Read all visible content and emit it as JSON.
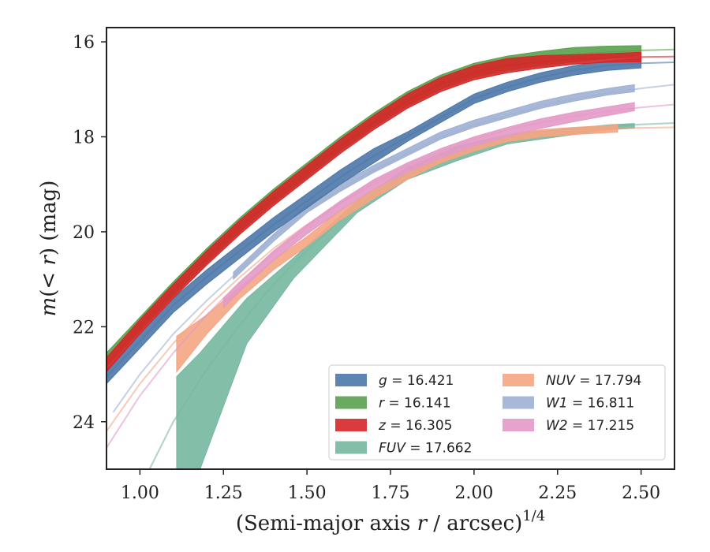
{
  "chart_data": {
    "type": "line",
    "xlabel": "(Semi-major axis r / arcsec)",
    "xlabel_parts": {
      "prefix": "(Semi-major axis ",
      "var": "r",
      "suffix": " / arcsec)",
      "exp": "1/4"
    },
    "ylabel": "m(< r) (mag)",
    "ylabel_parts": {
      "m": "m",
      "paren_open": "(",
      "lt": "< ",
      "r": "r",
      "paren_close": ")",
      "unit": " (mag)"
    },
    "xlim": [
      0.9,
      2.6
    ],
    "ylim": [
      25,
      15.7
    ],
    "y_inverted": true,
    "grid": false,
    "legend_position": "lower-right",
    "x_ticks": [
      1.0,
      1.25,
      1.5,
      1.75,
      2.0,
      2.25,
      2.5
    ],
    "x_tick_labels": [
      "1.00",
      "1.25",
      "1.50",
      "1.75",
      "2.00",
      "2.25",
      "2.50"
    ],
    "y_ticks": [
      16,
      18,
      20,
      22,
      24
    ],
    "y_tick_labels": [
      "16",
      "18",
      "20",
      "22",
      "24"
    ],
    "series": [
      {
        "name": "g",
        "legend_var": "g",
        "legend_value": "= 16.421",
        "color": "#4c78a8",
        "x": [
          0.9,
          1.0,
          1.1,
          1.2,
          1.3,
          1.4,
          1.5,
          1.6,
          1.7,
          1.8,
          1.9,
          2.0,
          2.1,
          2.2,
          2.3,
          2.4,
          2.5,
          2.6
        ],
        "y": [
          23.05,
          22.3,
          21.55,
          20.95,
          20.4,
          19.85,
          19.35,
          18.85,
          18.4,
          18.0,
          17.6,
          17.2,
          16.95,
          16.75,
          16.6,
          16.5,
          16.45,
          16.43
        ],
        "band_x": [
          0.9,
          1.0,
          1.1,
          1.2,
          1.3,
          1.4,
          1.5,
          1.6,
          1.7,
          1.8,
          1.9,
          2.0,
          2.1,
          2.2,
          2.3,
          2.4,
          2.5
        ],
        "band_lower": [
          23.2,
          22.45,
          21.7,
          21.1,
          20.55,
          20.0,
          19.5,
          19.0,
          18.55,
          18.1,
          17.7,
          17.3,
          17.05,
          16.85,
          16.7,
          16.6,
          16.55
        ],
        "band_upper": [
          22.9,
          22.15,
          21.4,
          20.8,
          20.25,
          19.7,
          19.2,
          18.7,
          18.25,
          17.9,
          17.5,
          17.1,
          16.85,
          16.65,
          16.5,
          16.4,
          16.35
        ]
      },
      {
        "name": "r",
        "legend_var": "r",
        "legend_value": "= 16.141",
        "color": "#59a14f",
        "x": [
          0.9,
          1.0,
          1.1,
          1.2,
          1.3,
          1.4,
          1.5,
          1.6,
          1.7,
          1.8,
          1.9,
          2.0,
          2.1,
          2.2,
          2.3,
          2.4,
          2.5,
          2.6
        ],
        "y": [
          22.7,
          21.95,
          21.2,
          20.5,
          19.85,
          19.25,
          18.7,
          18.15,
          17.65,
          17.2,
          16.85,
          16.6,
          16.45,
          16.35,
          16.27,
          16.22,
          16.18,
          16.16
        ],
        "band_x": [
          0.9,
          1.0,
          1.1,
          1.2,
          1.3,
          1.4,
          1.5,
          1.6,
          1.7,
          1.8,
          1.9,
          2.0,
          2.1,
          2.2,
          2.3,
          2.4,
          2.5
        ],
        "band_lower": [
          22.85,
          22.1,
          21.35,
          20.65,
          20.0,
          19.4,
          18.85,
          18.3,
          17.8,
          17.35,
          17.0,
          16.75,
          16.6,
          16.5,
          16.42,
          16.35,
          16.28
        ],
        "band_upper": [
          22.55,
          21.8,
          21.05,
          20.35,
          19.7,
          19.1,
          18.55,
          18.0,
          17.5,
          17.05,
          16.7,
          16.45,
          16.3,
          16.2,
          16.12,
          16.09,
          16.08
        ]
      },
      {
        "name": "z",
        "legend_var": "z",
        "legend_value": "= 16.305",
        "color": "#d62728",
        "x": [
          0.9,
          1.0,
          1.1,
          1.2,
          1.3,
          1.4,
          1.5,
          1.6,
          1.7,
          1.8,
          1.9,
          2.0,
          2.1,
          2.2,
          2.3,
          2.4,
          2.5,
          2.6
        ],
        "y": [
          22.8,
          22.0,
          21.25,
          20.55,
          19.9,
          19.3,
          18.75,
          18.2,
          17.7,
          17.25,
          16.9,
          16.65,
          16.5,
          16.42,
          16.37,
          16.34,
          16.32,
          16.31
        ],
        "band_x": [
          0.9,
          1.0,
          1.1,
          1.2,
          1.3,
          1.4,
          1.5,
          1.6,
          1.7,
          1.8,
          1.9,
          2.0,
          2.1,
          2.2,
          2.3,
          2.4,
          2.5
        ],
        "band_lower": [
          22.95,
          22.15,
          21.4,
          20.7,
          20.05,
          19.45,
          18.9,
          18.35,
          17.85,
          17.4,
          17.05,
          16.8,
          16.65,
          16.55,
          16.47,
          16.43,
          16.42
        ],
        "band_upper": [
          22.65,
          21.85,
          21.1,
          20.4,
          19.75,
          19.15,
          18.6,
          18.05,
          17.55,
          17.1,
          16.75,
          16.5,
          16.35,
          16.29,
          16.27,
          16.25,
          16.22
        ]
      },
      {
        "name": "FUV",
        "legend_var": "FUV",
        "legend_value": "= 17.662",
        "color": "#76b7a0",
        "x": [
          0.9,
          1.0,
          1.1,
          1.2,
          1.3,
          1.4,
          1.5,
          1.6,
          1.7,
          1.8,
          1.9,
          2.0,
          2.1,
          2.2,
          2.3,
          2.4,
          2.5,
          2.6
        ],
        "y": [
          27.0,
          25.4,
          24.0,
          22.9,
          21.95,
          21.1,
          20.4,
          19.75,
          19.2,
          18.75,
          18.45,
          18.2,
          18.0,
          17.9,
          17.83,
          17.78,
          17.74,
          17.71
        ],
        "band_x": [
          1.11,
          1.18,
          1.32,
          1.46,
          1.65,
          1.8,
          1.95,
          2.1,
          2.25,
          2.4,
          2.48
        ],
        "band_lower": [
          25.0,
          25.0,
          22.35,
          20.98,
          19.6,
          18.9,
          18.5,
          18.15,
          18.0,
          17.85,
          17.82
        ],
        "band_upper": [
          23.05,
          22.55,
          21.4,
          20.55,
          19.35,
          18.65,
          18.2,
          17.95,
          17.85,
          17.75,
          17.72
        ]
      },
      {
        "name": "NUV",
        "legend_var": "NUV",
        "legend_value": "= 17.794",
        "color": "#f4a582",
        "x": [
          0.9,
          1.0,
          1.1,
          1.2,
          1.3,
          1.4,
          1.5,
          1.6,
          1.7,
          1.8,
          1.9,
          2.0,
          2.1,
          2.2,
          2.3,
          2.4,
          2.5,
          2.6
        ],
        "y": [
          24.2,
          23.2,
          22.35,
          21.6,
          20.95,
          20.35,
          19.85,
          19.4,
          19.0,
          18.65,
          18.35,
          18.15,
          18.0,
          17.92,
          17.87,
          17.83,
          17.81,
          17.8
        ],
        "band_x": [
          1.11,
          1.2,
          1.3,
          1.4,
          1.5,
          1.6,
          1.7,
          1.8,
          1.9,
          2.0,
          2.1,
          2.2,
          2.3,
          2.43
        ],
        "band_lower": [
          22.95,
          22.15,
          21.4,
          20.8,
          20.3,
          19.75,
          19.3,
          18.9,
          18.55,
          18.3,
          18.1,
          18.0,
          17.95,
          17.9
        ],
        "band_upper": [
          22.2,
          21.75,
          21.15,
          20.6,
          20.1,
          19.55,
          19.1,
          18.7,
          18.4,
          18.15,
          17.95,
          17.85,
          17.8,
          17.75
        ]
      },
      {
        "name": "W1",
        "legend_var": "W1",
        "legend_value": "= 16.811",
        "color": "#9fb0d3",
        "x": [
          0.92,
          1.0,
          1.1,
          1.2,
          1.3,
          1.4,
          1.5,
          1.6,
          1.7,
          1.8,
          1.9,
          2.0,
          2.1,
          2.2,
          2.3,
          2.4,
          2.5,
          2.6
        ],
        "y": [
          23.8,
          23.0,
          22.15,
          21.45,
          20.8,
          20.1,
          19.55,
          19.1,
          18.7,
          18.35,
          18.0,
          17.75,
          17.55,
          17.35,
          17.2,
          17.08,
          16.98,
          16.9
        ],
        "band_x": [
          1.28,
          1.4,
          1.5,
          1.6,
          1.7,
          1.8,
          1.9,
          2.0,
          2.1,
          2.2,
          2.3,
          2.4,
          2.48
        ],
        "band_lower": [
          21.0,
          20.2,
          19.6,
          19.15,
          18.75,
          18.4,
          18.05,
          17.8,
          17.6,
          17.4,
          17.25,
          17.12,
          17.05
        ],
        "band_upper": [
          20.85,
          20.05,
          19.45,
          19.0,
          18.6,
          18.25,
          17.9,
          17.65,
          17.45,
          17.25,
          17.1,
          16.98,
          16.9
        ]
      },
      {
        "name": "W2",
        "legend_var": "W2",
        "legend_value": "= 17.215",
        "color": "#e39ac6",
        "x": [
          0.9,
          1.0,
          1.1,
          1.2,
          1.3,
          1.4,
          1.5,
          1.6,
          1.7,
          1.8,
          1.9,
          2.0,
          2.1,
          2.2,
          2.3,
          2.4,
          2.5,
          2.6
        ],
        "y": [
          24.55,
          23.45,
          22.55,
          21.75,
          21.05,
          20.45,
          19.9,
          19.4,
          18.95,
          18.6,
          18.3,
          18.05,
          17.85,
          17.7,
          17.57,
          17.46,
          17.38,
          17.32
        ],
        "band_x": [
          1.25,
          1.3,
          1.4,
          1.5,
          1.6,
          1.7,
          1.8,
          1.9,
          2.0,
          2.1,
          2.2,
          2.3,
          2.48
        ],
        "band_lower": [
          21.6,
          21.25,
          20.6,
          20.05,
          19.55,
          19.1,
          18.75,
          18.45,
          18.2,
          18.0,
          17.82,
          17.68,
          17.45
        ],
        "band_upper": [
          21.4,
          21.05,
          20.4,
          19.85,
          19.35,
          18.9,
          18.55,
          18.25,
          18.0,
          17.8,
          17.62,
          17.48,
          17.28
        ]
      }
    ]
  }
}
